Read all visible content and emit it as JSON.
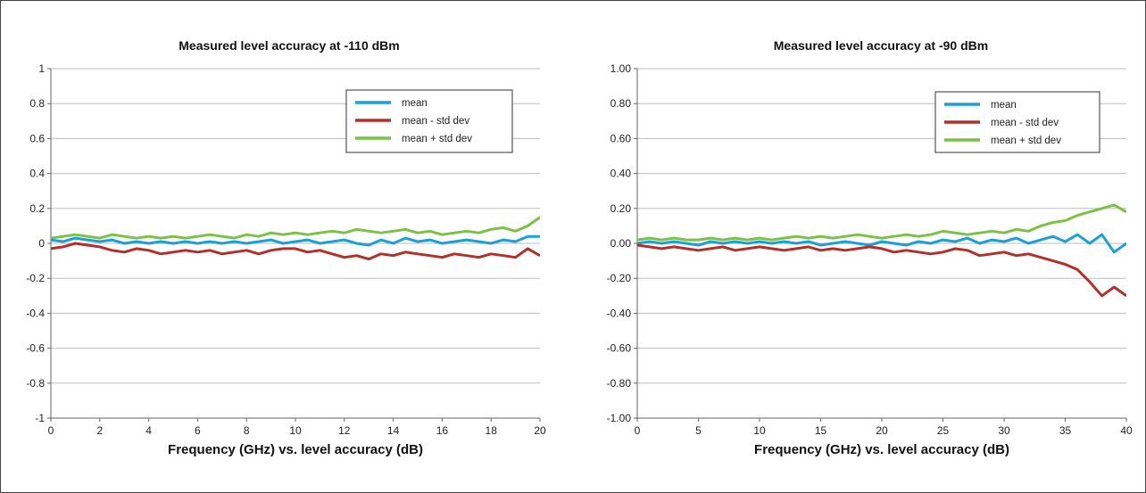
{
  "colors": {
    "mean": "#1aa0d8",
    "mean_minus": "#b52f2a",
    "mean_plus": "#7cc242",
    "grid": "#bdbdbd",
    "axis": "#666666"
  },
  "chart_data": [
    {
      "type": "line",
      "title": "Measured level accuracy  at -110 dBm",
      "xlabel": "Frequency (GHz) vs. level accuracy (dB)",
      "ylabel": "",
      "xlim": [
        0,
        20
      ],
      "ylim": [
        -1,
        1
      ],
      "xticks": [
        "0",
        "2",
        "4",
        "6",
        "8",
        "10",
        "12",
        "14",
        "16",
        "18",
        "20"
      ],
      "yticks": [
        "1",
        "0.8",
        "0.6",
        "0.4",
        "0.2",
        "0",
        "-0.2",
        "-0.4",
        "-0.6",
        "-0.8",
        "-1"
      ],
      "grid": true,
      "legend_position": "top-right",
      "x": [
        0,
        0.5,
        1,
        1.5,
        2,
        2.5,
        3,
        3.5,
        4,
        4.5,
        5,
        5.5,
        6,
        6.5,
        7,
        7.5,
        8,
        8.5,
        9,
        9.5,
        10,
        10.5,
        11,
        11.5,
        12,
        12.5,
        13,
        13.5,
        14,
        14.5,
        15,
        15.5,
        16,
        16.5,
        17,
        17.5,
        18,
        18.5,
        19,
        19.5,
        20
      ],
      "series": [
        {
          "name": "mean",
          "color_key": "mean",
          "values": [
            0.02,
            0.01,
            0.03,
            0.02,
            0.01,
            0.02,
            0.0,
            0.01,
            0.0,
            0.01,
            0.0,
            0.01,
            0.0,
            0.01,
            0.0,
            0.01,
            0.0,
            0.01,
            0.02,
            0.0,
            0.01,
            0.02,
            0.0,
            0.01,
            0.02,
            0.0,
            -0.01,
            0.02,
            0.0,
            0.03,
            0.01,
            0.02,
            0.0,
            0.01,
            0.02,
            0.01,
            0.0,
            0.02,
            0.01,
            0.04,
            0.04
          ]
        },
        {
          "name": "mean - std dev",
          "color_key": "mean_minus",
          "values": [
            -0.03,
            -0.02,
            0.0,
            -0.01,
            -0.02,
            -0.04,
            -0.05,
            -0.03,
            -0.04,
            -0.06,
            -0.05,
            -0.04,
            -0.05,
            -0.04,
            -0.06,
            -0.05,
            -0.04,
            -0.06,
            -0.04,
            -0.03,
            -0.03,
            -0.05,
            -0.04,
            -0.06,
            -0.08,
            -0.07,
            -0.09,
            -0.06,
            -0.07,
            -0.05,
            -0.06,
            -0.07,
            -0.08,
            -0.06,
            -0.07,
            -0.08,
            -0.06,
            -0.07,
            -0.08,
            -0.03,
            -0.07
          ]
        },
        {
          "name": "mean + std dev",
          "color_key": "mean_plus",
          "values": [
            0.03,
            0.04,
            0.05,
            0.04,
            0.03,
            0.05,
            0.04,
            0.03,
            0.04,
            0.03,
            0.04,
            0.03,
            0.04,
            0.05,
            0.04,
            0.03,
            0.05,
            0.04,
            0.06,
            0.05,
            0.06,
            0.05,
            0.06,
            0.07,
            0.06,
            0.08,
            0.07,
            0.06,
            0.07,
            0.08,
            0.06,
            0.07,
            0.05,
            0.06,
            0.07,
            0.06,
            0.08,
            0.09,
            0.07,
            0.1,
            0.15
          ]
        }
      ]
    },
    {
      "type": "line",
      "title": "Measured level accuracy  at -90 dBm",
      "xlabel": "Frequency (GHz) vs. level accuracy (dB)",
      "ylabel": "",
      "xlim": [
        0,
        40
      ],
      "ylim": [
        -1,
        1
      ],
      "xticks": [
        "0",
        "5",
        "10",
        "15",
        "20",
        "25",
        "30",
        "35",
        "40"
      ],
      "yticks": [
        "1.00",
        "0.80",
        "0.60",
        "0.40",
        "0.20",
        "0.00",
        "-0.20",
        "-0.40",
        "-0.60",
        "-0.80",
        "-1.00"
      ],
      "grid": true,
      "legend_position": "top-right",
      "x": [
        0,
        1,
        2,
        3,
        4,
        5,
        6,
        7,
        8,
        9,
        10,
        11,
        12,
        13,
        14,
        15,
        16,
        17,
        18,
        19,
        20,
        21,
        22,
        23,
        24,
        25,
        26,
        27,
        28,
        29,
        30,
        31,
        32,
        33,
        34,
        35,
        36,
        37,
        38,
        39,
        40
      ],
      "series": [
        {
          "name": "mean",
          "color_key": "mean",
          "values": [
            0.0,
            0.01,
            0.0,
            0.01,
            0.0,
            -0.01,
            0.01,
            0.0,
            0.01,
            0.0,
            0.01,
            0.0,
            0.01,
            0.0,
            0.01,
            -0.01,
            0.0,
            0.01,
            0.0,
            -0.01,
            0.01,
            0.0,
            -0.01,
            0.01,
            0.0,
            0.02,
            0.01,
            0.03,
            0.0,
            0.02,
            0.01,
            0.03,
            0.0,
            0.02,
            0.04,
            0.01,
            0.05,
            0.0,
            0.05,
            -0.05,
            0.0
          ]
        },
        {
          "name": "mean - std dev",
          "color_key": "mean_minus",
          "values": [
            -0.01,
            -0.02,
            -0.03,
            -0.02,
            -0.03,
            -0.04,
            -0.03,
            -0.02,
            -0.04,
            -0.03,
            -0.02,
            -0.03,
            -0.04,
            -0.03,
            -0.02,
            -0.04,
            -0.03,
            -0.04,
            -0.03,
            -0.02,
            -0.03,
            -0.05,
            -0.04,
            -0.05,
            -0.06,
            -0.05,
            -0.03,
            -0.04,
            -0.07,
            -0.06,
            -0.05,
            -0.07,
            -0.06,
            -0.08,
            -0.1,
            -0.12,
            -0.15,
            -0.22,
            -0.3,
            -0.25,
            -0.3
          ]
        },
        {
          "name": "mean + std dev",
          "color_key": "mean_plus",
          "values": [
            0.02,
            0.03,
            0.02,
            0.03,
            0.02,
            0.02,
            0.03,
            0.02,
            0.03,
            0.02,
            0.03,
            0.02,
            0.03,
            0.04,
            0.03,
            0.04,
            0.03,
            0.04,
            0.05,
            0.04,
            0.03,
            0.04,
            0.05,
            0.04,
            0.05,
            0.07,
            0.06,
            0.05,
            0.06,
            0.07,
            0.06,
            0.08,
            0.07,
            0.1,
            0.12,
            0.13,
            0.16,
            0.18,
            0.2,
            0.22,
            0.18
          ]
        }
      ]
    }
  ]
}
